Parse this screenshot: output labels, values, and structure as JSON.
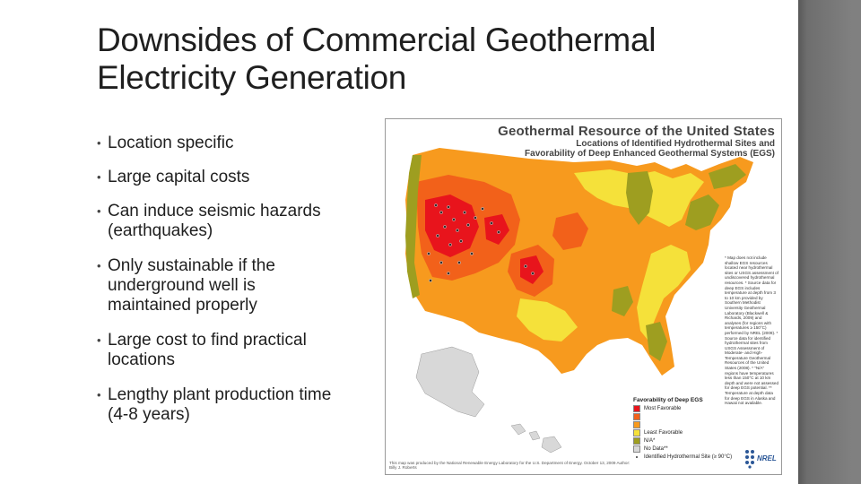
{
  "slide": {
    "title": "Downsides of Commercial Geothermal Electricity Generation",
    "bullets": [
      [
        "Location specific"
      ],
      [
        "Large capital costs"
      ],
      [
        "Can induce seismic hazards",
        "(earthquakes)"
      ],
      [
        "Only sustainable if the",
        "underground well is",
        "maintained properly"
      ],
      [
        "Large cost to find practical",
        "locations"
      ],
      [
        "Lengthy plant production time",
        "(4-8 years)"
      ]
    ]
  },
  "map": {
    "title": "Geothermal Resource of the United States",
    "subtitle_line1": "Locations of Identified Hydrothermal Sites and",
    "subtitle_line2": "Favorability of Deep Enhanced Geothermal Systems (EGS)",
    "notes": "* Map does not include shallow EGS resources located near hydrothermal sites or USGS assessment of undiscovered hydrothermal resources. * Source data for deep EGS includes temperature at depth from 3 to 10 km provided by Southern Methodist University Geothermal Laboratory (Blackwell & Richards, 2009) and analyses (for regions with temperatures ≥ 150°C) performed by NREL (2009). * Source data for identified hydrothermal sites from USGS Assessment of Moderate- and High-Temperature Geothermal Resources of the United States (2008). * \"N/A\" regions have temperatures less than 150°C at 10 km depth and were not assessed for deep EGS potential. ** Temperature at depth data for deep EGS in Alaska and Hawaii not available.",
    "legend": {
      "title": "Favorability of Deep EGS",
      "items": [
        {
          "label": "Most Favorable",
          "color": "#e8141c"
        },
        {
          "label": "",
          "color": "#f2611a"
        },
        {
          "label": "",
          "color": "#f79a1e"
        },
        {
          "label": "Least Favorable",
          "color": "#f5e13a"
        },
        {
          "label": "N/A*",
          "color": "#9e9e20"
        },
        {
          "label": "No Data**",
          "color": "#d8d8d8"
        }
      ],
      "site_label": "Identified Hydrothermal Site (≥ 90°C)"
    },
    "credit": "This map was produced by the National Renewable Energy Laboratory for the U.S. Department of Energy. October 13, 2009 Author: Billy J. Roberts",
    "logo_text": "NREL",
    "colors": {
      "most": "#e8141c",
      "high": "#f2611a",
      "mid": "#f79a1e",
      "low": "#f5e13a",
      "na": "#9e9e20",
      "nodata": "#d8d8d8",
      "water": "#ffffff",
      "side_bar": "#707070"
    }
  }
}
